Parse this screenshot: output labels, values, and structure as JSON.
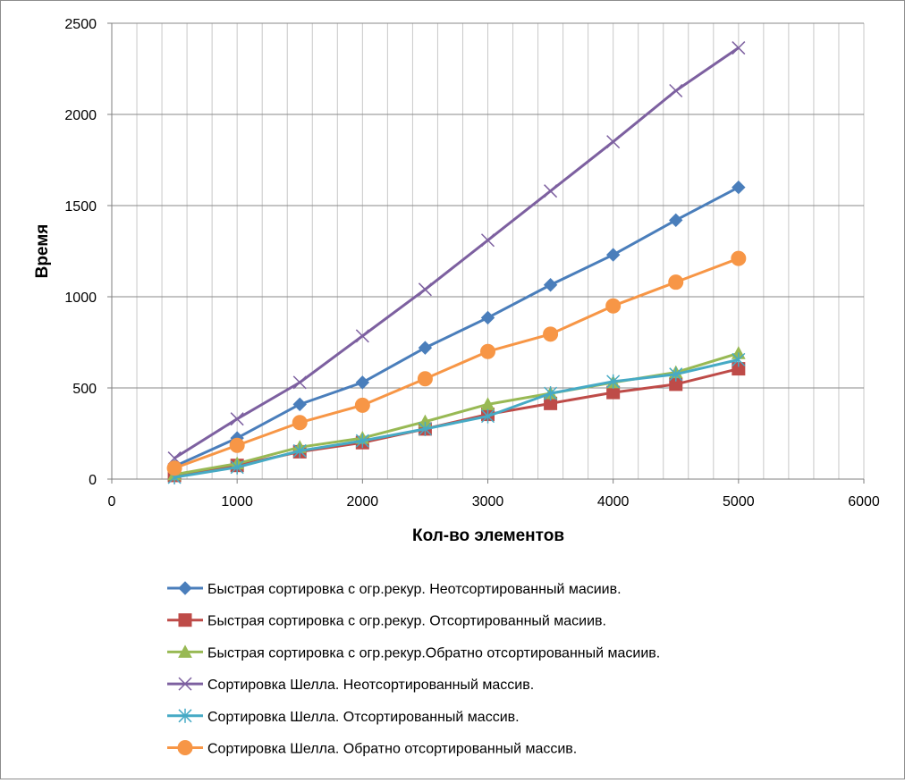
{
  "chart_data": {
    "type": "line",
    "xlabel": "Кол-во элементов",
    "ylabel": "Время",
    "xlim": [
      0,
      6000
    ],
    "ylim": [
      0,
      2500
    ],
    "xticks": [
      0,
      1000,
      2000,
      3000,
      4000,
      5000,
      6000
    ],
    "yticks": [
      0,
      500,
      1000,
      1500,
      2000,
      2500
    ],
    "grid": true,
    "legend_position": "bottom",
    "x": [
      500,
      1000,
      1500,
      2000,
      2500,
      3000,
      3500,
      4000,
      4500,
      5000
    ],
    "series": [
      {
        "name": "Быстрая сортировка с огр.рекур. Неотсортированный масиив.",
        "color": "#4A7EBB",
        "marker": "diamond",
        "values": [
          70,
          225,
          410,
          530,
          720,
          885,
          1065,
          1230,
          1420,
          1600
        ]
      },
      {
        "name": "Быстрая сортировка с огр.рекур. Отсортированный масиив.",
        "color": "#BE4B48",
        "marker": "square",
        "values": [
          20,
          75,
          150,
          200,
          275,
          355,
          415,
          475,
          520,
          605
        ]
      },
      {
        "name": "Быстрая сортировка с огр.рекур.Обратно отсортированный масиив.",
        "color": "#98B954",
        "marker": "triangle",
        "values": [
          25,
          85,
          175,
          225,
          315,
          410,
          470,
          530,
          585,
          690
        ]
      },
      {
        "name": "Сортировка Шелла. Неотсортированный массив.",
        "color": "#7D60A0",
        "marker": "x",
        "values": [
          115,
          330,
          530,
          785,
          1040,
          1310,
          1580,
          1850,
          2130,
          2365
        ]
      },
      {
        "name": "Сортировка Шелла. Отсортированный массив.",
        "color": "#46AAC5",
        "marker": "star",
        "values": [
          10,
          65,
          155,
          210,
          275,
          345,
          470,
          535,
          575,
          655
        ]
      },
      {
        "name": "Сортировка Шелла. Обратно отсортированный массив.",
        "color": "#F79646",
        "marker": "circle",
        "values": [
          60,
          185,
          310,
          405,
          550,
          700,
          795,
          950,
          1080,
          1210
        ]
      }
    ]
  }
}
